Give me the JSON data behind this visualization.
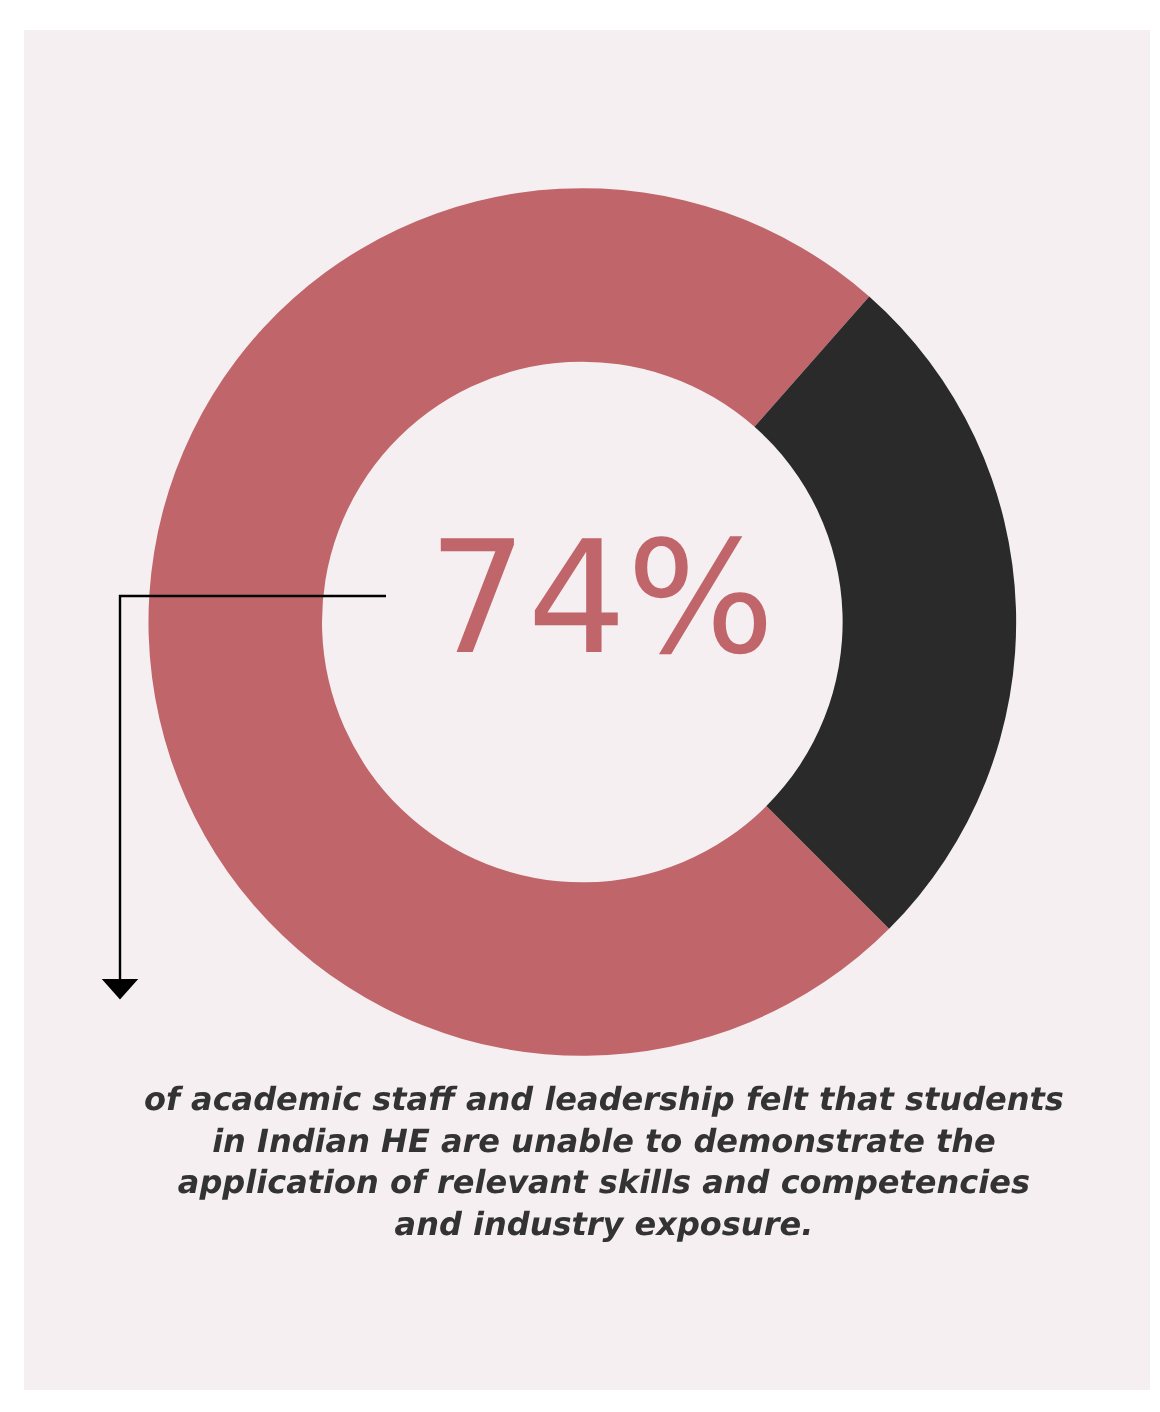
{
  "chart_data": {
    "type": "donut",
    "categories": [
      null,
      null
    ],
    "values": [
      74,
      26
    ],
    "colors": [
      "#c0666a",
      "#2a2a2a"
    ],
    "annotations": [
      "74%",
      "of academic staff and leadership felt that students\nin Indian HE are unable to demonstrate the\napplication of relevant skills and competencies\nand industry exposure."
    ],
    "legend": false
  }
}
